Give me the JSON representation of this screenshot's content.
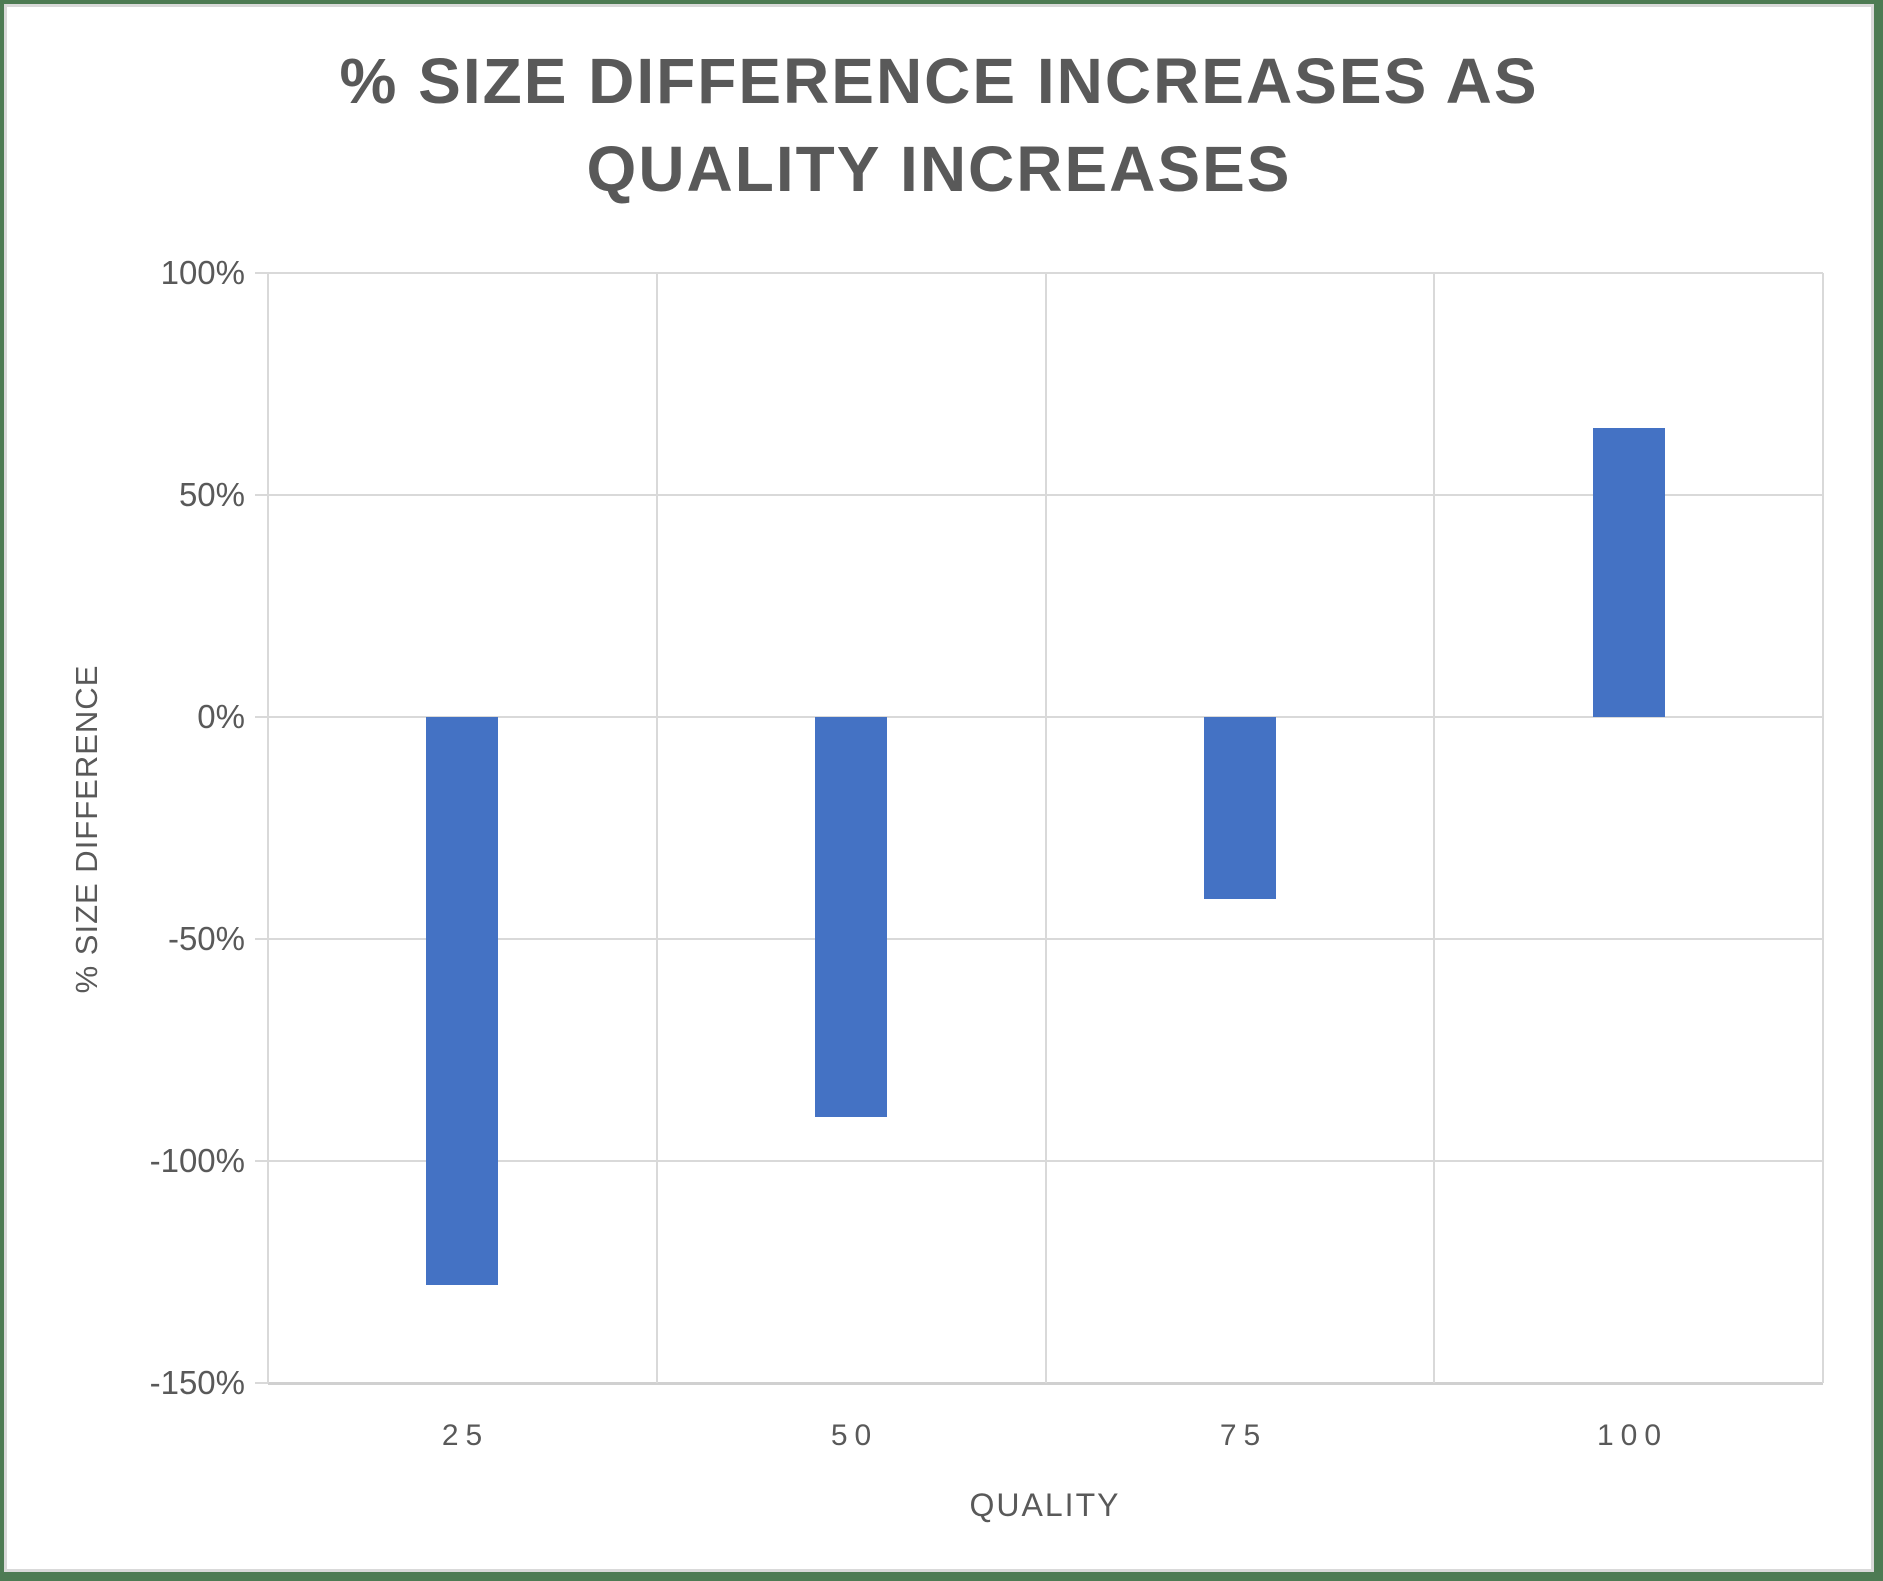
{
  "window": {
    "background": "#FFFFFF",
    "border_color": "#4D7B53",
    "inner_edge_color": "#D9D9D9"
  },
  "chart_data": {
    "type": "bar",
    "title": "% SIZE DIFFERENCE INCREASES AS QUALITY INCREASES",
    "title_lines": [
      "% SIZE DIFFERENCE INCREASES AS",
      "QUALITY INCREASES"
    ],
    "categories": [
      "25",
      "50",
      "75",
      "100"
    ],
    "values": [
      -128,
      -90,
      -41,
      65
    ],
    "xlabel": "QUALITY",
    "ylabel": "% SIZE DIFFERENCE",
    "ylim": [
      -150,
      100
    ],
    "ytick_step": 50,
    "ytick_labels": [
      "100%",
      "50%",
      "0%",
      "-50%",
      "-100%",
      "-150%"
    ],
    "legend": "none",
    "grid": true,
    "bar_color": "#4472C4",
    "gridline_color": "#D9D9D9",
    "text_color": "#595959"
  }
}
